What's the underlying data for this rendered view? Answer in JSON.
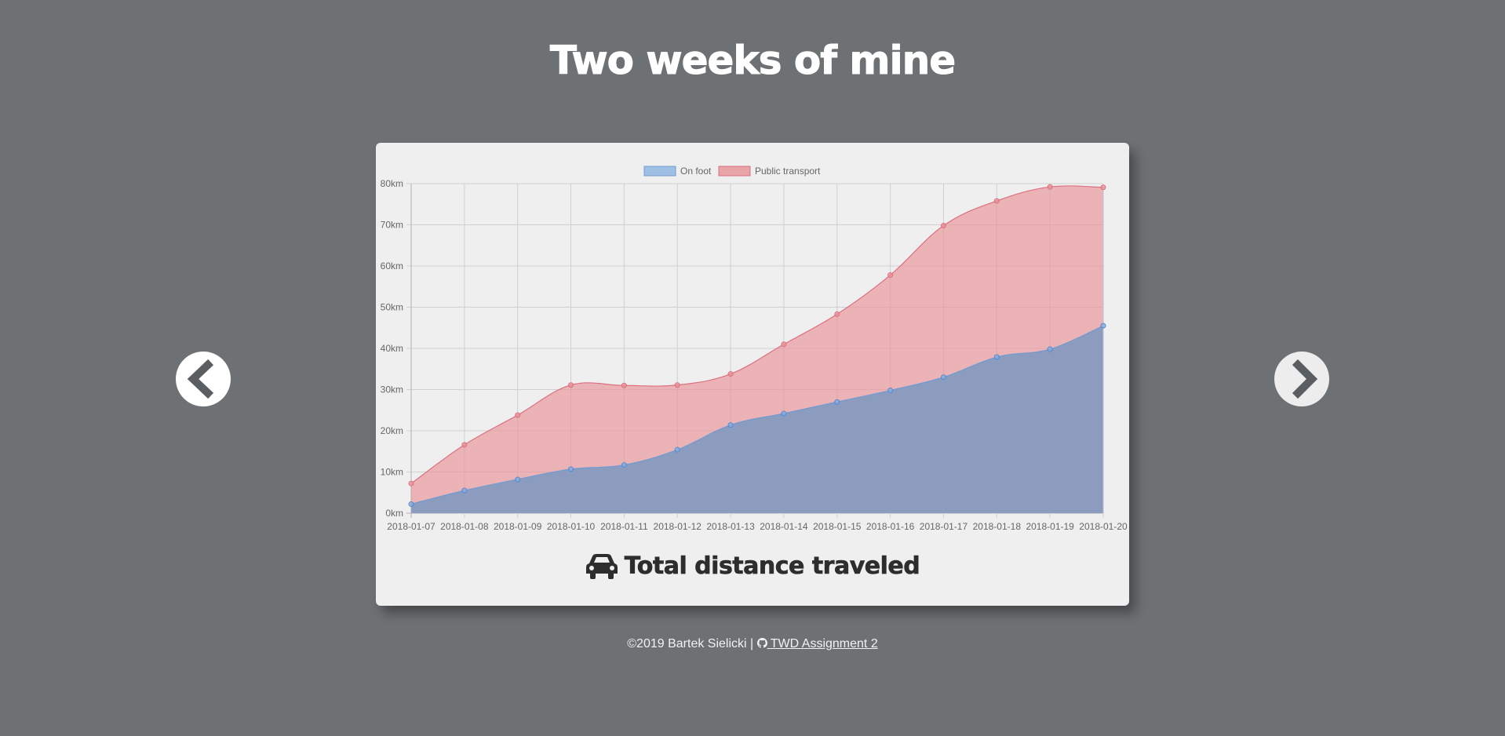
{
  "page": {
    "title": "Two weeks of mine",
    "footer_copyright": "©2019 Bartek Sielicki |",
    "footer_link": "TWD Assignment 2",
    "footer_link_icon": "github-icon",
    "prev_icon": "chevron-left-icon",
    "next_icon": "chevron-right-icon"
  },
  "chart_caption": {
    "text": "Total distance traveled",
    "icon": "car-icon"
  },
  "chart_data": {
    "type": "area",
    "stacked": true,
    "x": [
      "2018-01-07",
      "2018-01-08",
      "2018-01-09",
      "2018-01-10",
      "2018-01-11",
      "2018-01-12",
      "2018-01-13",
      "2018-01-14",
      "2018-01-15",
      "2018-01-16",
      "2018-01-17",
      "2018-01-18",
      "2018-01-19",
      "2018-01-20"
    ],
    "series": [
      {
        "name": "On foot",
        "values": [
          2.2,
          5.5,
          8.2,
          10.7,
          11.7,
          15.4,
          21.4,
          24.2,
          27.0,
          29.8,
          33.0,
          37.9,
          39.8,
          45.5
        ],
        "color": "#7aaedc",
        "fill": "rgba(121,152,196,0.55)"
      },
      {
        "name": "Public transport",
        "values": [
          5.0,
          11.1,
          15.6,
          20.4,
          19.3,
          15.7,
          12.4,
          16.8,
          21.3,
          28.0,
          36.8,
          37.9,
          39.4,
          33.6
        ],
        "color": "#dc7080",
        "fill": "rgba(232,146,150,0.65)"
      }
    ],
    "cumulative_top": [
      7.2,
      16.6,
      23.8,
      31.1,
      31.0,
      31.1,
      33.8,
      41.0,
      48.3,
      57.8,
      69.8,
      75.8,
      79.2,
      79.1
    ],
    "y_unit": "km",
    "y_ticks": [
      "0km",
      "10km",
      "20km",
      "30km",
      "40km",
      "50km",
      "60km",
      "70km",
      "80km"
    ],
    "ylim": [
      0,
      80
    ],
    "grid": true,
    "legend_position": "top-center"
  }
}
